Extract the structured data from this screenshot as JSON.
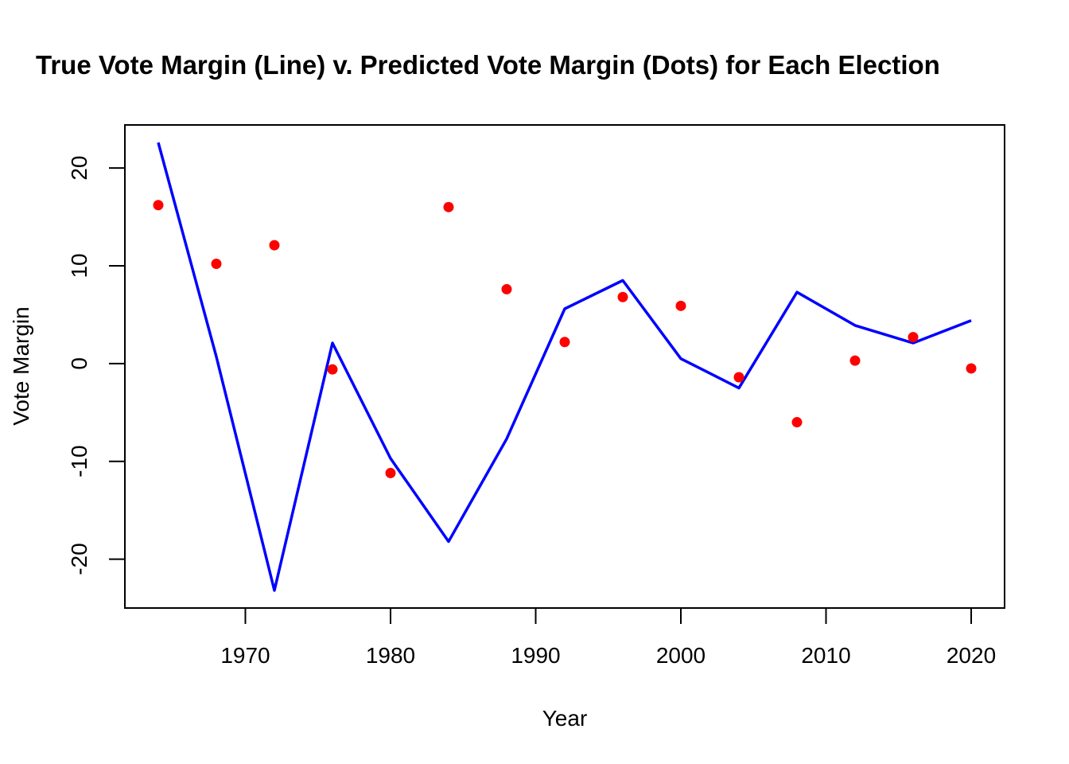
{
  "chart_data": {
    "type": "line",
    "title": "True Vote Margin (Line) v. Predicted Vote Margin (Dots) for Each Election",
    "xlabel": "Year",
    "ylabel": "Vote Margin",
    "xlim": [
      1961.7,
      2022.3
    ],
    "ylim": [
      -25,
      24.4
    ],
    "x_ticks": [
      1970,
      1980,
      1990,
      2000,
      2010,
      2020
    ],
    "y_ticks": [
      -20,
      -10,
      0,
      10,
      20
    ],
    "grid": false,
    "legend": "none",
    "x": [
      1964,
      1968,
      1972,
      1976,
      1980,
      1984,
      1988,
      1992,
      1996,
      2000,
      2004,
      2008,
      2012,
      2016,
      2020
    ],
    "series": [
      {
        "kind": "line",
        "color": "#0000ff",
        "values": [
          22.6,
          0.7,
          -23.2,
          2.1,
          -9.7,
          -18.2,
          -7.7,
          5.6,
          8.5,
          0.5,
          -2.5,
          7.3,
          3.9,
          2.1,
          4.4
        ]
      },
      {
        "kind": "points",
        "color": "#ff0000",
        "values": [
          16.2,
          10.2,
          12.1,
          -0.6,
          -11.2,
          16.0,
          7.6,
          2.2,
          6.8,
          5.9,
          -1.4,
          -6.0,
          0.3,
          2.7,
          -0.5
        ]
      }
    ]
  }
}
